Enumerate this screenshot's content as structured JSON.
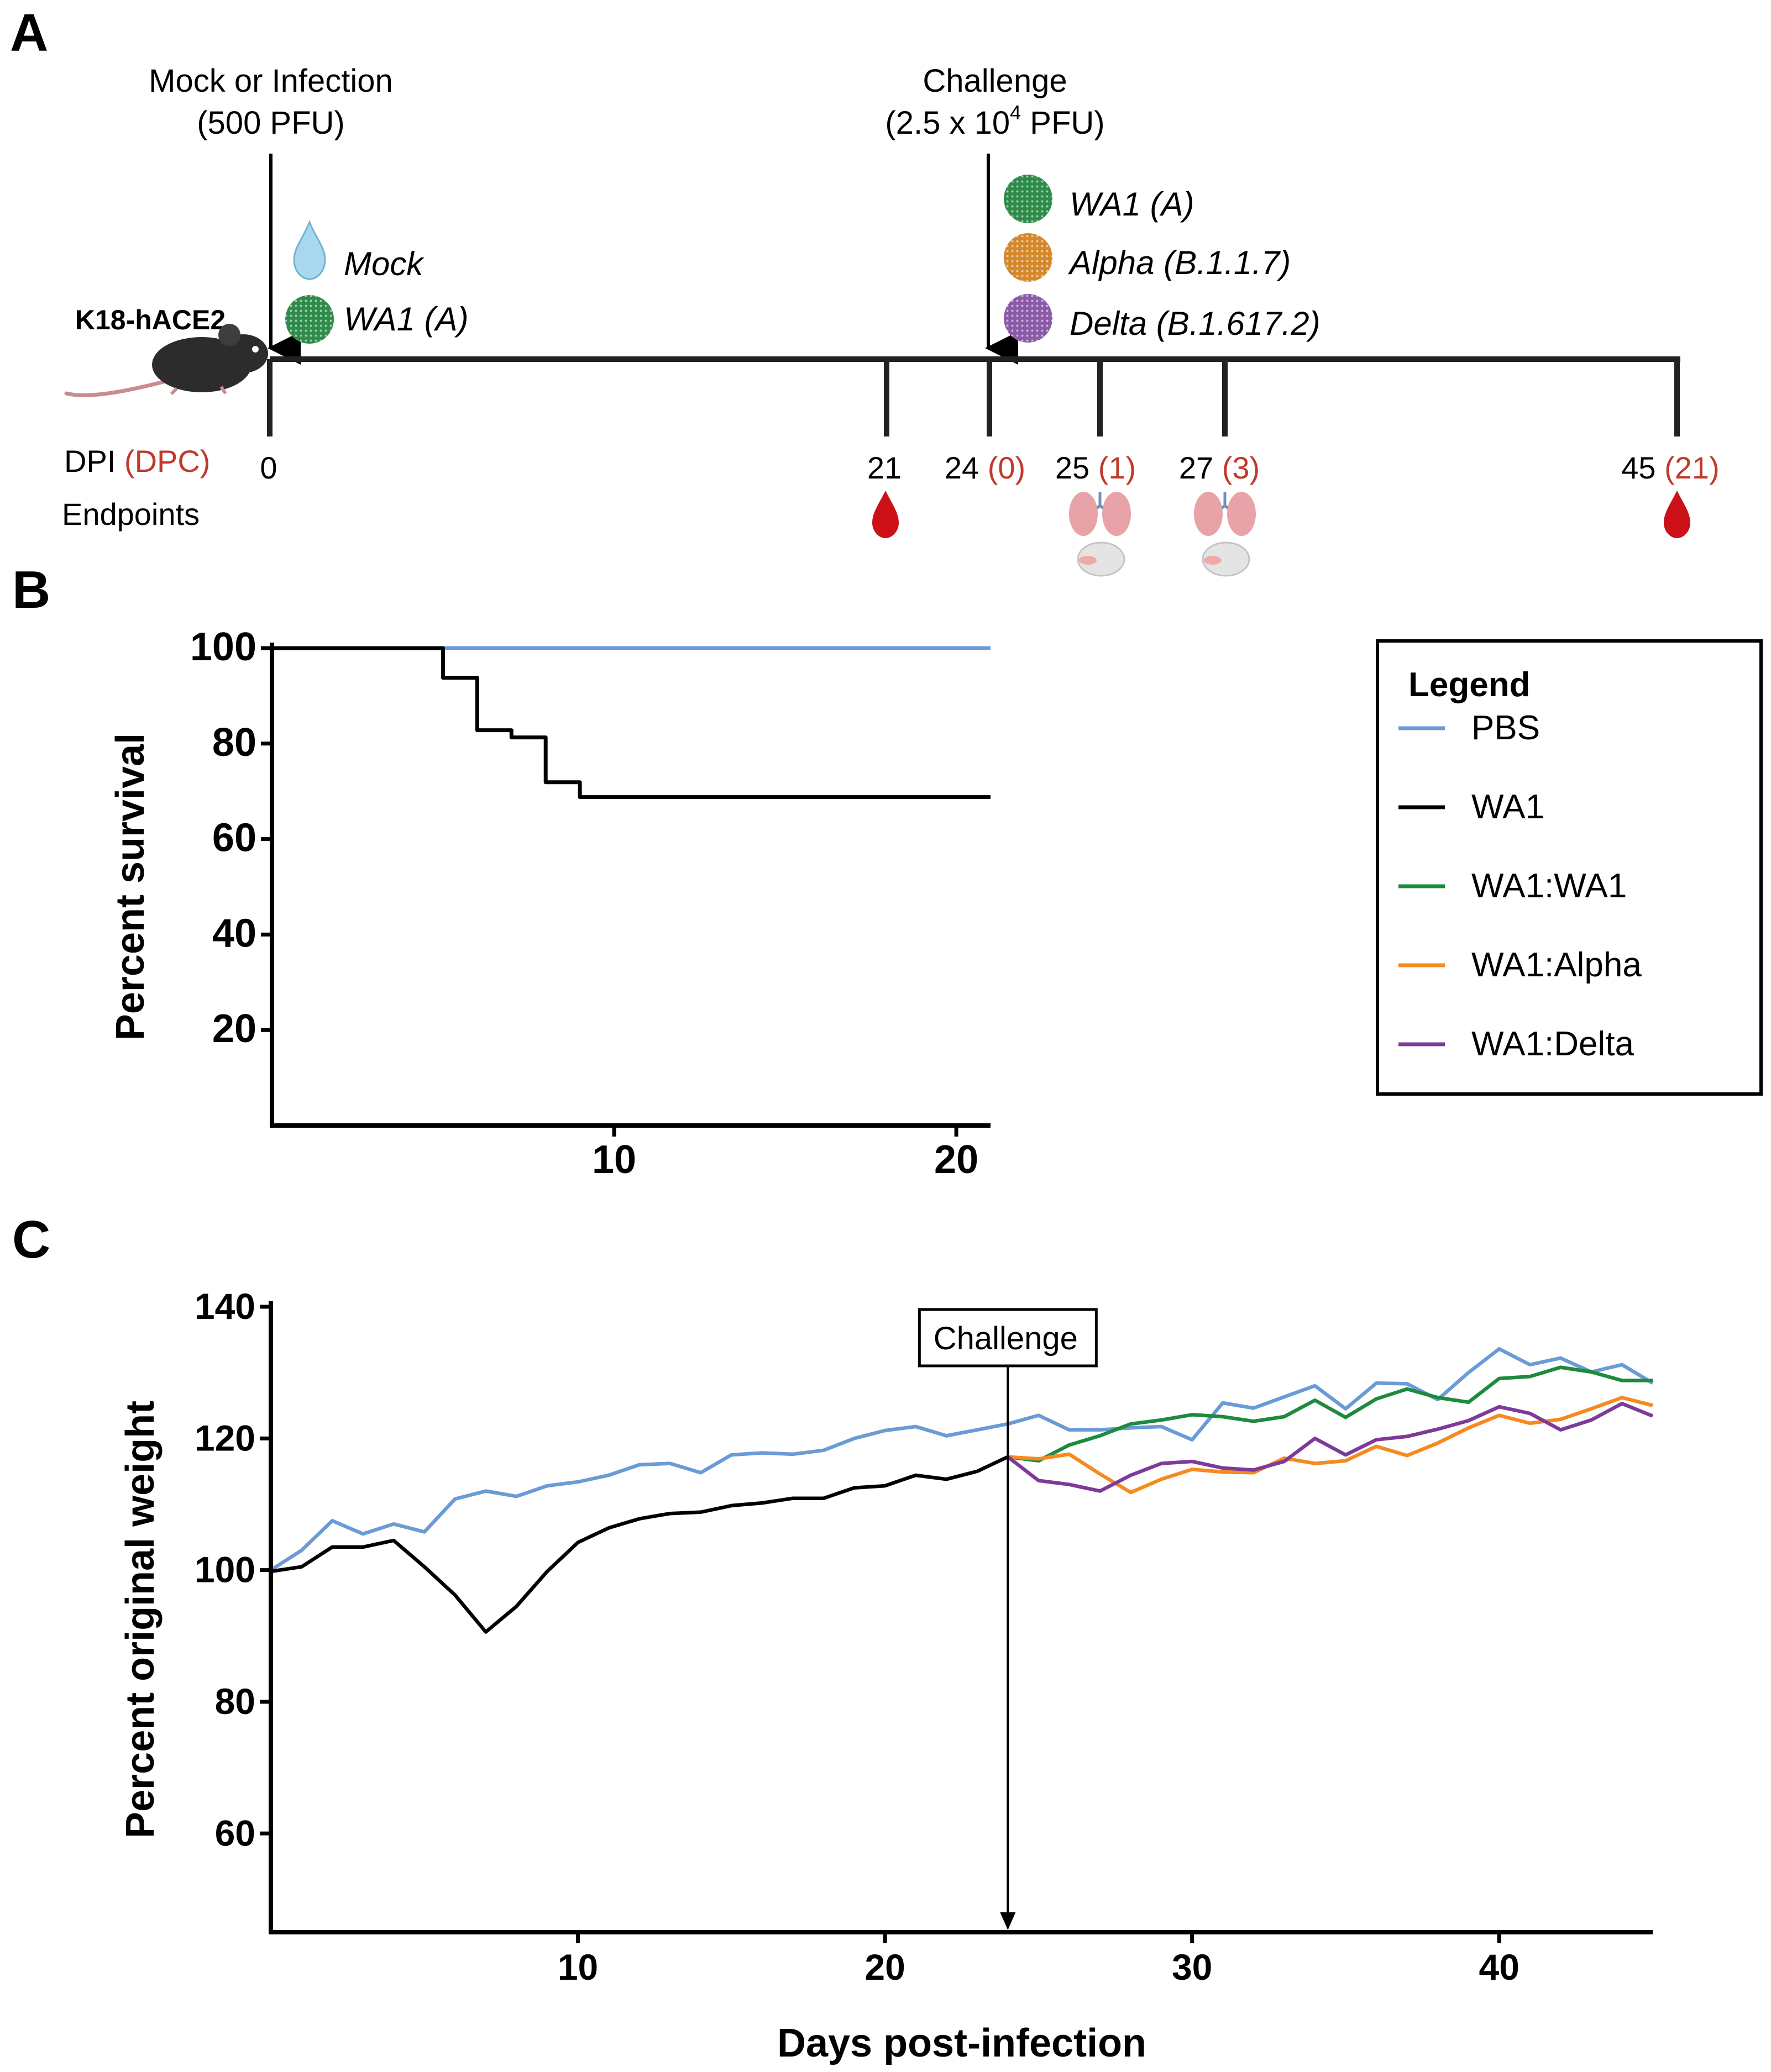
{
  "colors": {
    "pbs": "#6a9bd6",
    "wa1": "#000000",
    "wa1_wa1": "#1e8a3e",
    "wa1_alpha": "#f58a1f",
    "wa1_delta": "#7e3a9a",
    "dpc_red": "#c0392b",
    "blood": "#cc1018",
    "lung": "#e8a3a8",
    "mouse": "#2c2c2c"
  },
  "panel_a": {
    "letter": "A",
    "infection_line1": "Mock or Infection",
    "infection_line2": "(500 PFU)",
    "challenge_line1": "Challenge",
    "challenge_pre": "(2.5 x 10",
    "challenge_sup": "4",
    "challenge_post": " PFU)",
    "mouse_label": "K18-hACE2",
    "infections": [
      {
        "label": "Mock",
        "icon": "droplet-icon"
      },
      {
        "label": "WA1 (A)",
        "icon": "virus-icon",
        "color": "#2e8b4a"
      }
    ],
    "challenges": [
      {
        "label": "WA1 (A)",
        "color": "#2e8b4a"
      },
      {
        "label": "Alpha (B.1.1.7)",
        "color": "#d4882a"
      },
      {
        "label": "Delta (B.1.617.2)",
        "color": "#8a5aa8"
      }
    ],
    "dpi_label": "DPI",
    "dpc_label": "(DPC)",
    "endpoints_label": "Endpoints",
    "ticks": [
      {
        "dpi": "0",
        "dpc": ""
      },
      {
        "dpi": "21",
        "dpc": ""
      },
      {
        "dpi": "24",
        "dpc": "(0)"
      },
      {
        "dpi": "25",
        "dpc": "(1)"
      },
      {
        "dpi": "27",
        "dpc": "(3)"
      },
      {
        "dpi": "45",
        "dpc": "(21)"
      }
    ]
  },
  "panel_b_letter": "B",
  "panel_c_letter": "C",
  "legend": {
    "title": "Legend",
    "items": [
      {
        "label": "PBS",
        "color": "#6a9bd6"
      },
      {
        "label": "WA1",
        "color": "#000000"
      },
      {
        "label": "WA1:WA1",
        "color": "#1e8a3e"
      },
      {
        "label": "WA1:Alpha",
        "color": "#f58a1f"
      },
      {
        "label": "WA1:Delta",
        "color": "#7e3a9a"
      }
    ]
  },
  "chart_data": [
    {
      "type": "line",
      "title": "",
      "ylabel": "Percent survival",
      "xlabel": "",
      "xlim": [
        0,
        21
      ],
      "ylim": [
        0,
        100
      ],
      "xticks": [
        10,
        20
      ],
      "yticks": [
        20,
        40,
        60,
        80,
        100
      ],
      "step": true,
      "series": [
        {
          "name": "PBS",
          "color": "#6a9bd6",
          "points": [
            [
              0,
              100
            ],
            [
              21,
              100
            ]
          ]
        },
        {
          "name": "WA1",
          "color": "#000000",
          "points": [
            [
              0,
              100
            ],
            [
              5,
              100
            ],
            [
              5,
              93.8
            ],
            [
              6,
              93.8
            ],
            [
              6,
              82.8
            ],
            [
              7,
              82.8
            ],
            [
              7,
              81.3
            ],
            [
              8,
              81.3
            ],
            [
              8,
              71.9
            ],
            [
              9,
              71.9
            ],
            [
              9,
              68.8
            ],
            [
              21,
              68.8
            ]
          ]
        }
      ]
    },
    {
      "type": "line",
      "title": "",
      "ylabel": "Percent original weight",
      "xlabel": "Days post-infection",
      "xlim": [
        0,
        45
      ],
      "ylim": [
        45,
        140
      ],
      "xticks": [
        10,
        20,
        30,
        40
      ],
      "yticks": [
        60,
        80,
        100,
        120,
        140
      ],
      "annotation": {
        "label": "Challenge",
        "x": 24
      },
      "series": [
        {
          "name": "PBS",
          "color": "#6a9bd6",
          "x": [
            0,
            1,
            2,
            3,
            4,
            5,
            6,
            7,
            8,
            9,
            10,
            11,
            12,
            13,
            14,
            15,
            16,
            17,
            18,
            19,
            20,
            21,
            22,
            23,
            24,
            25,
            26,
            27,
            28,
            29,
            30,
            31,
            32,
            33,
            34,
            35,
            36,
            37,
            38,
            39,
            40,
            41,
            42,
            43,
            44,
            45
          ],
          "y": [
            100,
            103,
            107.5,
            105.5,
            107,
            105.8,
            110.8,
            112,
            111.2,
            112.8,
            113.4,
            114.4,
            116,
            116.2,
            114.8,
            117.5,
            117.8,
            117.6,
            118.2,
            120,
            121.2,
            121.8,
            120.4,
            121.3,
            122.2,
            123.5,
            121.3,
            121.3,
            121.6,
            121.8,
            119.8,
            125.4,
            124.6,
            126.3,
            128,
            124.5,
            128.4,
            128.3,
            125.9,
            130,
            133.6,
            131.2,
            132.2,
            130.1,
            131.2,
            128.4
          ]
        },
        {
          "name": "WA1",
          "color": "#000000",
          "x": [
            0,
            1,
            2,
            3,
            4,
            5,
            6,
            7,
            8,
            9,
            10,
            11,
            12,
            13,
            14,
            15,
            16,
            17,
            18,
            19,
            20,
            21,
            22,
            23,
            24
          ],
          "y": [
            99.8,
            100.5,
            103.5,
            103.5,
            104.5,
            100.5,
            96.2,
            90.6,
            94.5,
            99.8,
            104.2,
            106.4,
            107.8,
            108.6,
            108.8,
            109.8,
            110.2,
            110.9,
            110.9,
            112.5,
            112.8,
            114.4,
            113.8,
            115,
            117.2
          ]
        },
        {
          "name": "WA1:WA1",
          "color": "#1e8a3e",
          "x": [
            24,
            25,
            26,
            27,
            28,
            29,
            30,
            31,
            32,
            33,
            34,
            35,
            36,
            37,
            38,
            39,
            40,
            41,
            42,
            43,
            44,
            45
          ],
          "y": [
            117.2,
            116.6,
            119,
            120.4,
            122.2,
            122.8,
            123.6,
            123.3,
            122.6,
            123.3,
            125.8,
            123.2,
            126,
            127.5,
            126.2,
            125.5,
            129.1,
            129.4,
            130.8,
            130.1,
            128.8,
            128.8
          ]
        },
        {
          "name": "WA1:Alpha",
          "color": "#f58a1f",
          "x": [
            24,
            25,
            26,
            27,
            28,
            29,
            30,
            31,
            32,
            33,
            34,
            35,
            36,
            37,
            38,
            39,
            40,
            41,
            42,
            43,
            44,
            45
          ],
          "y": [
            117.2,
            116.9,
            117.6,
            114.6,
            111.8,
            113.8,
            115.3,
            114.9,
            114.8,
            117,
            116.2,
            116.6,
            118.8,
            117.4,
            119.3,
            121.6,
            123.5,
            122.3,
            122.9,
            124.5,
            126.2,
            125
          ]
        },
        {
          "name": "WA1:Delta",
          "color": "#7e3a9a",
          "x": [
            24,
            25,
            26,
            27,
            28,
            29,
            30,
            31,
            32,
            33,
            34,
            35,
            36,
            37,
            38,
            39,
            40,
            41,
            42,
            43,
            44,
            45
          ],
          "y": [
            117.2,
            113.6,
            113,
            112,
            114.4,
            116.2,
            116.5,
            115.5,
            115.2,
            116.5,
            120,
            117.5,
            119.8,
            120.3,
            121.4,
            122.7,
            124.8,
            123.8,
            121.3,
            122.8,
            125.3,
            123.4
          ]
        }
      ]
    }
  ]
}
